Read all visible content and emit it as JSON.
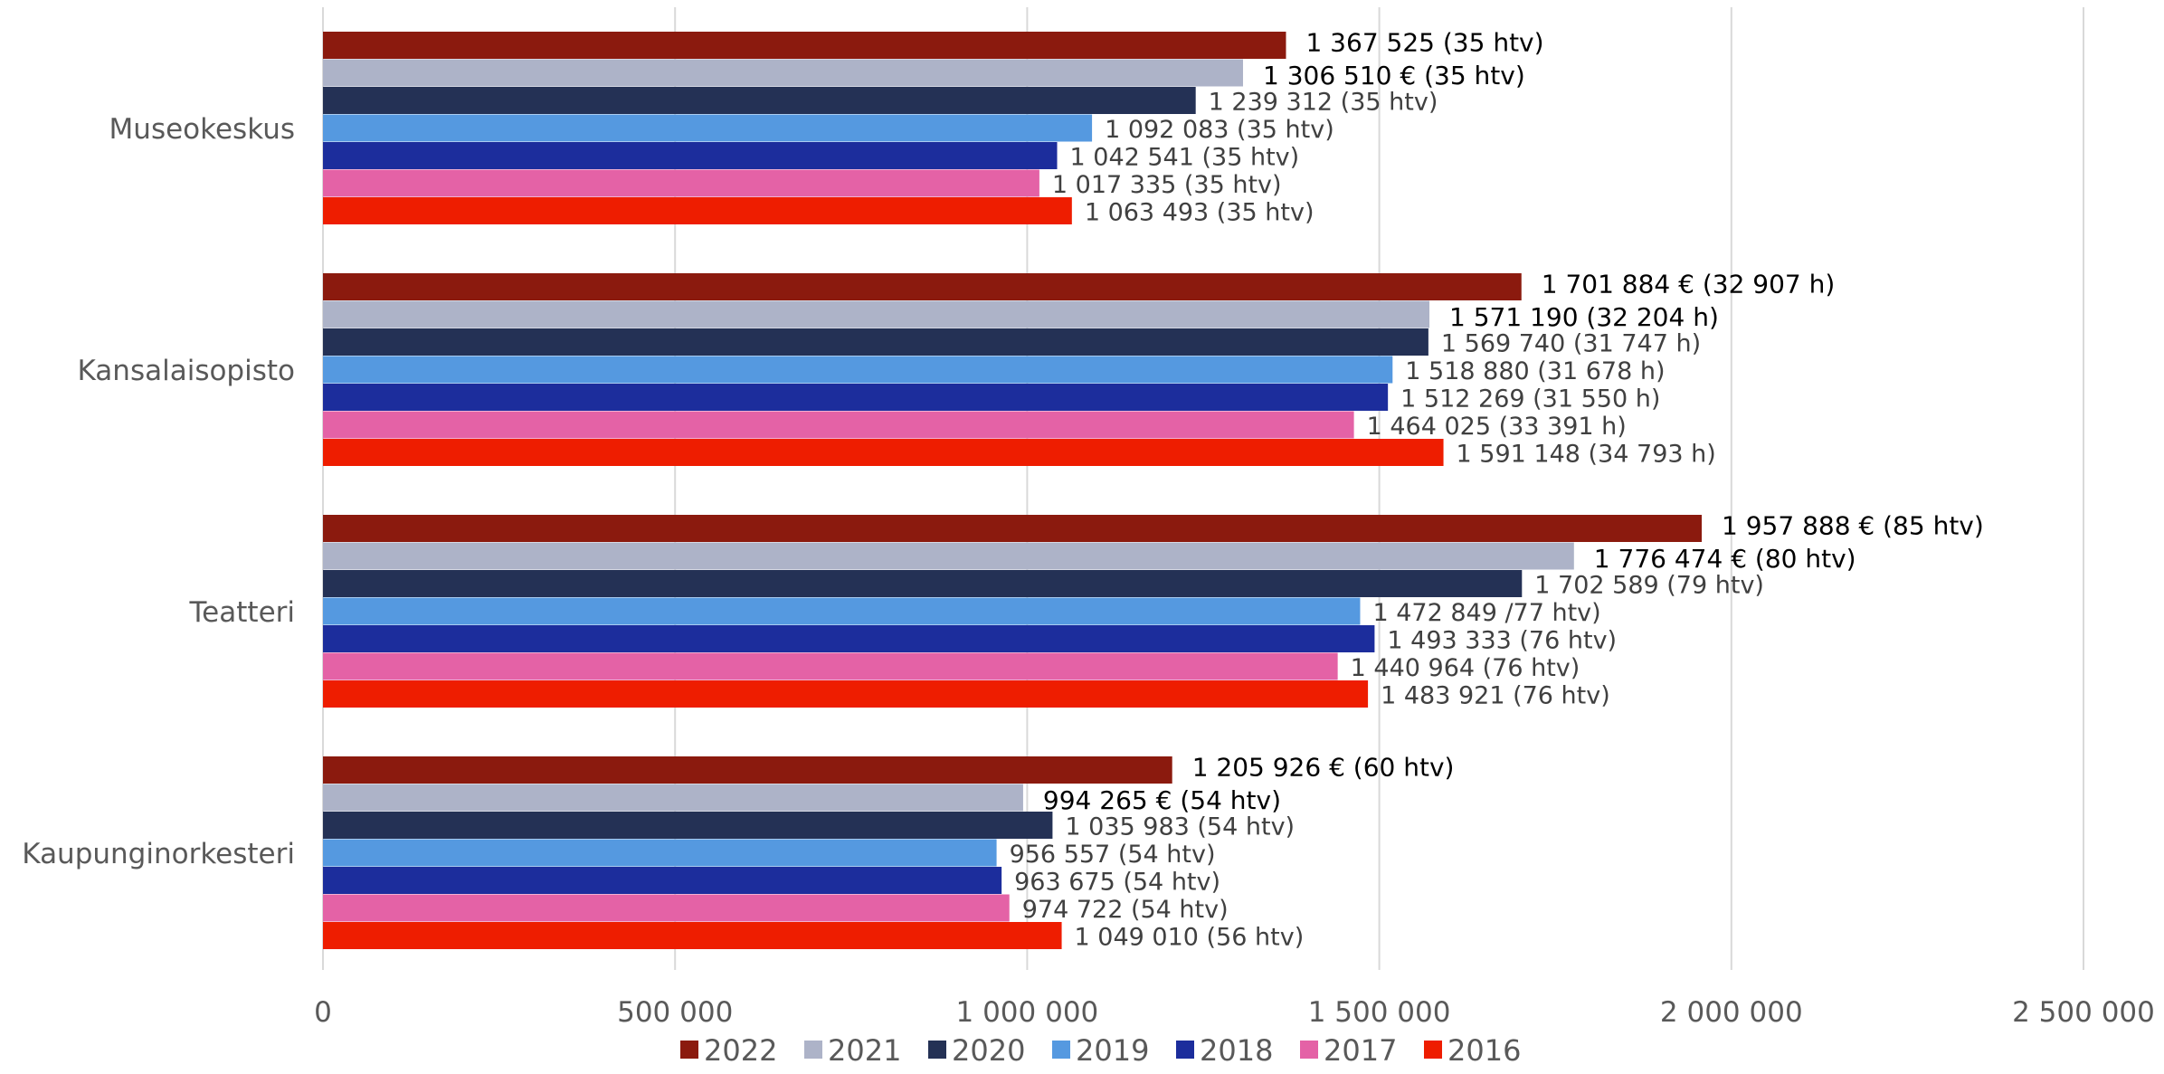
{
  "chart_data": {
    "type": "bar",
    "orientation": "horizontal",
    "categories": [
      "Museokeskus",
      "Kansalaisopisto",
      "Teatteri",
      "Kaupunginorkesteri"
    ],
    "series": [
      {
        "name": "2022",
        "color": "#8b1a0e",
        "values": [
          1367525,
          1701884,
          1957888,
          1205926
        ],
        "labels": [
          "1 367 525 (35 htv)",
          "1 701 884 € (32 907 h)",
          "1 957 888 € (85 htv)",
          "1 205 926 € (60 htv)"
        ]
      },
      {
        "name": "2021",
        "color": "#adb3c8",
        "values": [
          1306510,
          1571190,
          1776474,
          994265
        ],
        "labels": [
          "1 306 510 € (35 htv)",
          "1 571 190 (32 204  h)",
          "1 776 474 € (80 htv)",
          "994 265 € (54 htv)"
        ]
      },
      {
        "name": "2020",
        "color": "#243155",
        "values": [
          1239312,
          1569740,
          1702589,
          1035983
        ],
        "labels": [
          "1 239 312 (35 htv)",
          "1 569 740 (31 747 h)",
          "1 702 589  (79 htv)",
          "1 035 983  (54 htv)"
        ]
      },
      {
        "name": "2019",
        "color": "#5599e0",
        "values": [
          1092083,
          1518880,
          1472849,
          956557
        ],
        "labels": [
          "1 092 083 (35 htv)",
          "1 518 880 (31 678 h)",
          "1 472 849   /77 htv)",
          "956 557  (54 htv)"
        ]
      },
      {
        "name": "2018",
        "color": "#1c2d9c",
        "values": [
          1042541,
          1512269,
          1493333,
          963675
        ],
        "labels": [
          "1 042 541 (35 htv)",
          "1 512 269 (31 550 h)",
          "1 493 333  (76 htv)",
          "963 675  (54 htv)"
        ]
      },
      {
        "name": "2017",
        "color": "#e462a6",
        "values": [
          1017335,
          1464025,
          1440964,
          974722
        ],
        "labels": [
          "1 017 335 (35 htv)",
          "1 464 025 (33 391 h)",
          "1 440 964 (76 htv)",
          "974 722  (54 htv)"
        ]
      },
      {
        "name": "2016",
        "color": "#ee1d00",
        "values": [
          1063493,
          1591148,
          1483921,
          1049010
        ],
        "labels": [
          "1 063 493 (35 htv)",
          "1 591 148 (34 793 h)",
          "1 483 921  (76 htv)",
          "1 049 010  (56 htv)"
        ]
      }
    ],
    "xlim": [
      0,
      2500000
    ],
    "x_ticks": [
      0,
      500000,
      1000000,
      1500000,
      2000000,
      2500000
    ],
    "x_tick_labels": [
      "0",
      "500 000",
      "1 000 000",
      "1 500 000",
      "2 000 000",
      "2 500 000"
    ],
    "grid": true,
    "legend_position": "bottom",
    "dark_labels": [
      "2022",
      "2021"
    ]
  }
}
